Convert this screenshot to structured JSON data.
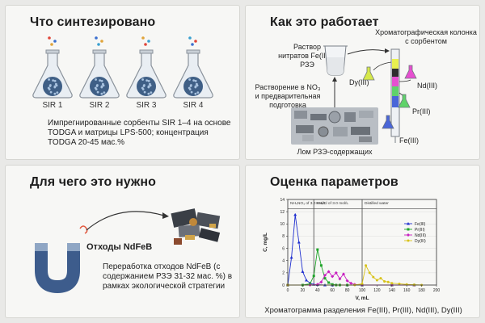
{
  "panel1": {
    "title": "Что синтезировано",
    "flasks": [
      {
        "label": "SIR 1"
      },
      {
        "label": "SIR 2"
      },
      {
        "label": "SIR 3"
      },
      {
        "label": "SIR 4"
      }
    ],
    "description": "Импрегнированные сорбенты SIR 1–4 на основе TODGA и матрицы LPS-500; концентрация TODGA 20-45 мас.%"
  },
  "panel2": {
    "title": "Как это работает",
    "nitrate_solution": "Раствор нитратов Fe(III) и РЗЭ",
    "column_label": "Хроматографическая колонка с сорбентом",
    "dissolution": "Растворение в NO₃ и предварительная подготовка",
    "scrap_label": "Лом РЗЭ-содержащих материалов",
    "outputs": [
      {
        "label": "Dy(III)",
        "color": "#d6e84a"
      },
      {
        "label": "Nd(III)",
        "color": "#e64fd0"
      },
      {
        "label": "Pr(III)",
        "color": "#5fd36a"
      },
      {
        "label": "Fe(III)",
        "color": "#4a66d8"
      }
    ]
  },
  "panel3": {
    "title": "Для чего это нужно",
    "waste_label": "Отходы NdFeB",
    "description": "Переработка отходов NdFeB (с содержанием РЗЭ 31-32 мас. %) в рамках экологической стратегии"
  },
  "panel4": {
    "title": "Оценка параметров",
    "caption": "Хроматограмма разделения Fe(III), Pr(III), Nd(III), Dy(III)"
  },
  "chart_data": {
    "type": "line",
    "xlabel": "V, mL",
    "ylabel": "C, mg/L",
    "xlim": [
      0,
      200
    ],
    "ylim": [
      0,
      14
    ],
    "xticks": [
      0,
      20,
      40,
      60,
      80,
      100,
      120,
      140,
      160,
      180,
      200
    ],
    "yticks": [
      0,
      2,
      4,
      6,
      8,
      10,
      12,
      14
    ],
    "regions": [
      {
        "label": "NH₄NO₃ of 3.0 mol/L",
        "from": 0,
        "to": 35
      },
      {
        "label": "NH₄Cl of 3.0 mol/L",
        "from": 35,
        "to": 100
      },
      {
        "label": "Distilled water",
        "from": 100,
        "to": 200
      }
    ],
    "legend_position": "top-right",
    "series": [
      {
        "name": "Fe(III)",
        "color": "#1f2fd0",
        "marker": "triangle",
        "x": [
          0,
          5,
          10,
          15,
          20,
          25,
          30,
          35,
          40,
          50,
          60,
          80,
          100,
          140,
          170
        ],
        "y": [
          0,
          4.5,
          11.5,
          7,
          2.2,
          0.8,
          0.3,
          0.1,
          0.05,
          0,
          0,
          0,
          0,
          0,
          0
        ]
      },
      {
        "name": "Pr(III)",
        "color": "#1fa52a",
        "marker": "square",
        "x": [
          0,
          20,
          30,
          35,
          40,
          45,
          50,
          55,
          60,
          65,
          70,
          80,
          100,
          140,
          170
        ],
        "y": [
          0,
          0,
          0.2,
          1.5,
          5.8,
          3.2,
          1.1,
          0.4,
          0.1,
          0,
          0,
          0,
          0,
          0,
          0
        ]
      },
      {
        "name": "Nd(III)",
        "color": "#c81fc0",
        "marker": "diamond",
        "x": [
          0,
          30,
          40,
          45,
          50,
          55,
          60,
          65,
          70,
          75,
          80,
          85,
          90,
          100,
          140,
          170
        ],
        "y": [
          0,
          0,
          0.1,
          0.5,
          1.6,
          2.2,
          1.4,
          2.0,
          1.0,
          1.8,
          0.7,
          0.3,
          0.1,
          0,
          0,
          0
        ]
      },
      {
        "name": "Dy(III)",
        "color": "#d8c21a",
        "marker": "circle",
        "x": [
          0,
          90,
          100,
          105,
          110,
          115,
          120,
          125,
          130,
          135,
          140,
          150,
          160,
          170,
          180
        ],
        "y": [
          0,
          0,
          0.2,
          3.2,
          2.0,
          1.3,
          0.8,
          1.1,
          0.6,
          0.5,
          0.3,
          0.2,
          0.1,
          0.05,
          0
        ]
      }
    ]
  }
}
